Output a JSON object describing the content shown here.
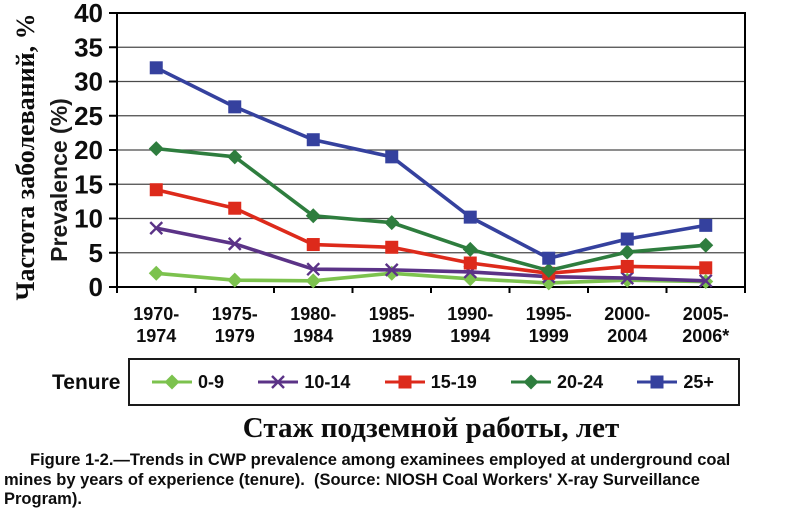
{
  "figure": {
    "ylabel_ru": "Частота заболеваний, %",
    "ylabel_en": "Prevalence (%)",
    "xlabel": "Стаж подземной работы, лет",
    "legend_title": "Tenure",
    "caption_lines": [
      "Figure 1-2.—Trends in CWP prevalence among examinees employed at underground coal",
      "mines by years of experience (tenure).  (Source: NIOSH Coal Workers' X-ray Surveillance",
      "Program)."
    ]
  },
  "chart_data": {
    "type": "line",
    "title": "",
    "xlabel": "Стаж подземной работы, лет",
    "ylabel": "Prevalence (%)",
    "ylabel_secondary": "Частота заболеваний, %",
    "categories": [
      "1970-1974",
      "1975-1979",
      "1980-1984",
      "1985-1989",
      "1990-1994",
      "1995-1999",
      "2000-2004",
      "2005-2006*"
    ],
    "series": [
      {
        "name": "0-9",
        "color": "#7CC24E",
        "marker": "diamond",
        "values": [
          2,
          1,
          0.9,
          2,
          1.2,
          0.6,
          1,
          0.8
        ]
      },
      {
        "name": "10-14",
        "color": "#5B3387",
        "marker": "x",
        "values": [
          8.6,
          6.3,
          2.6,
          2.5,
          2.2,
          1.5,
          1.3,
          0.9
        ]
      },
      {
        "name": "15-19",
        "color": "#DD2A1B",
        "marker": "square",
        "values": [
          14.2,
          11.5,
          6.2,
          5.8,
          3.5,
          2,
          3,
          2.8
        ]
      },
      {
        "name": "20-24",
        "color": "#2E7D3E",
        "marker": "diamond",
        "values": [
          20.2,
          19,
          10.4,
          9.4,
          5.5,
          2.4,
          5.1,
          6.1
        ]
      },
      {
        "name": "25+",
        "color": "#35419E",
        "marker": "square",
        "values": [
          32,
          26.3,
          21.5,
          19,
          10.2,
          4.2,
          7,
          9
        ]
      }
    ],
    "ylim": [
      0,
      40
    ],
    "ytick_step": 5,
    "grid": "horizontal",
    "legend_title": "Tenure",
    "legend_position": "bottom"
  }
}
